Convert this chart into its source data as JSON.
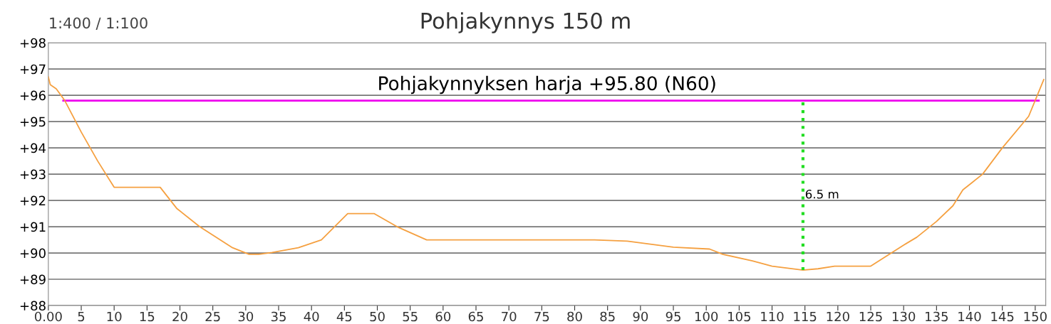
{
  "chart_data": {
    "type": "line",
    "title": "Pohjakynnys 150 m",
    "annotations": [
      "1:400 / 1:100",
      {
        "text": "6.5 m",
        "x": 114.7,
        "y": 92.2
      }
    ],
    "series": [
      {
        "color": "#f5a040",
        "x": [
          0,
          0.3,
          1.2,
          2.5,
          5,
          7.5,
          10,
          17,
          19.5,
          23,
          28,
          30.5,
          32,
          34,
          38,
          41.5,
          45.5,
          49.5,
          53,
          57.5,
          70,
          83,
          88,
          95,
          100.5,
          102.5,
          107,
          110,
          114.7,
          117,
          119.5,
          125,
          130,
          132,
          135,
          137.5,
          139,
          140.5,
          142,
          145,
          149,
          151.3
        ],
        "values": [
          96.7,
          96.4,
          96.25,
          95.8,
          94.6,
          93.5,
          92.5,
          92.5,
          91.7,
          91.0,
          90.2,
          89.95,
          89.95,
          90.02,
          90.2,
          90.5,
          91.5,
          91.5,
          91.0,
          90.5,
          90.5,
          90.5,
          90.45,
          90.22,
          90.15,
          89.95,
          89.7,
          89.5,
          89.35,
          89.4,
          89.5,
          89.5,
          90.3,
          90.6,
          91.2,
          91.8,
          92.4,
          92.7,
          93.0,
          94.0,
          95.2,
          96.6
        ]
      },
      {
        "color": "#22dd22",
        "line_style": "dotted",
        "x": [
          114.7,
          114.7
        ],
        "values": [
          89.35,
          95.8
        ]
      }
    ],
    "ref_lines": [
      {
        "axis": "y",
        "value": 95.8,
        "label": "Pohjakynnyksen harja +95.80 (N60)",
        "color": "#ee00ee"
      }
    ],
    "xlim": [
      0,
      151.6
    ],
    "xticks": [
      {
        "value": 0,
        "label": "0.00"
      },
      5,
      10,
      15,
      20,
      25,
      30,
      35,
      40,
      45,
      50,
      55,
      60,
      65,
      70,
      75,
      80,
      85,
      90,
      95,
      100,
      105,
      110,
      115,
      120,
      125,
      130,
      135,
      140,
      145,
      150
    ],
    "ylim": [
      88,
      98
    ],
    "yticks": [
      {
        "value": 88,
        "label": "+88"
      },
      {
        "value": 89,
        "label": "+89"
      },
      {
        "value": 90,
        "label": "+90"
      },
      {
        "value": 91,
        "label": "+91"
      },
      {
        "value": 92,
        "label": "+92"
      },
      {
        "value": 93,
        "label": "+93"
      },
      {
        "value": 94,
        "label": "+94"
      },
      {
        "value": 95,
        "label": "+95"
      },
      {
        "value": 96,
        "label": "+96"
      },
      {
        "value": 97,
        "label": "+97"
      },
      {
        "value": 98,
        "label": "+98"
      }
    ],
    "grid": "y",
    "marker": "none"
  }
}
